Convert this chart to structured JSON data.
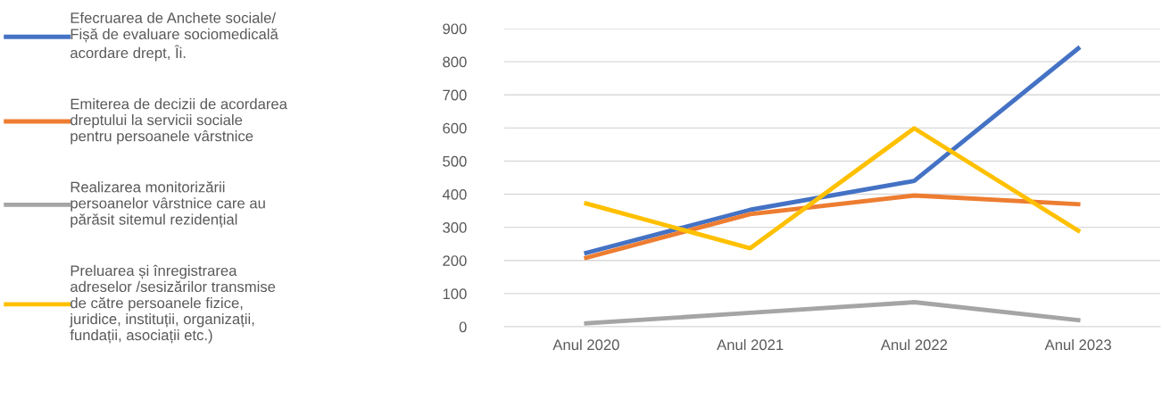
{
  "chart_data": {
    "type": "line",
    "categories": [
      "Anul 2020",
      "Anul 2021",
      "Anul 2022",
      "Anul 2023"
    ],
    "series": [
      {
        "name": "Efecruarea de Anchete sociale/\nFișă de evaluare sociomedicală\nacordare drept, Îi.",
        "color": "#4472c4",
        "values": [
          223,
          353,
          440,
          840
        ]
      },
      {
        "name": "Emiterea de decizii de acordarea\ndreptului la servicii sociale\npentru persoanele vârstnice",
        "color": "#ed7d31",
        "values": [
          208,
          340,
          396,
          370
        ]
      },
      {
        "name": "Realizarea monitorizării\npersoanelor vârstnice care au\npărăsit sitemul rezidențial",
        "color": "#a5a5a5",
        "values": [
          10,
          42,
          74,
          20
        ]
      },
      {
        "name": "Preluarea și înregistrarea\nadreselor /sesizărilor transmise\nde către persoanele fizice,\njuridice, instituții, organizații,\nfundații, asociații etc.)",
        "color": "#ffc000",
        "values": [
          372,
          237,
          599,
          290
        ]
      }
    ],
    "ylim": [
      0,
      900
    ],
    "yticks": [
      0,
      100,
      200,
      300,
      400,
      500,
      600,
      700,
      800,
      900
    ],
    "grid": "y",
    "legend": "left",
    "marker": "none",
    "line_style": "solid"
  }
}
